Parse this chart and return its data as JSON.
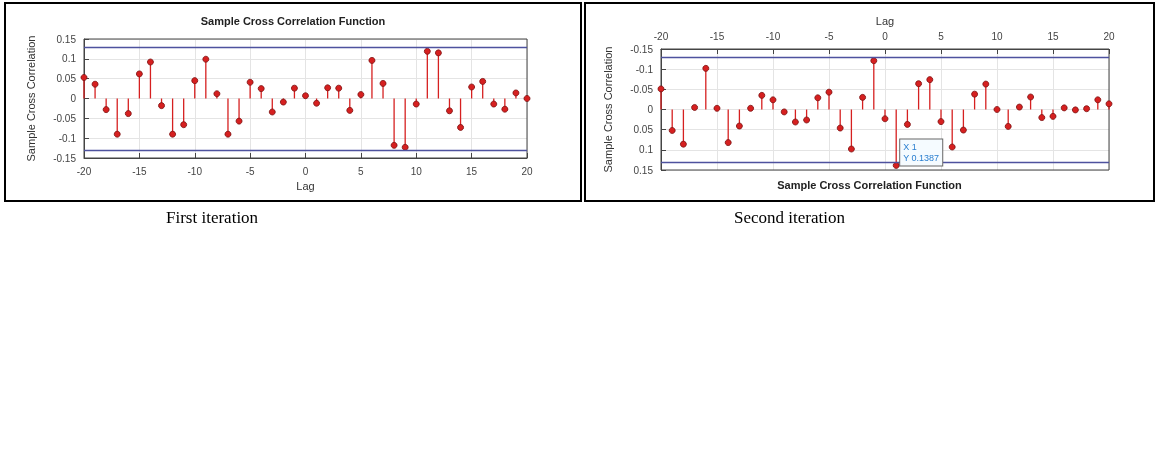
{
  "chart_data": [
    {
      "type": "lollipop",
      "title": "Sample Cross Correlation Function",
      "xlabel": "Lag",
      "ylabel": "Sample Cross Correlation",
      "xlim": [
        -20,
        20
      ],
      "xticks": [
        -20,
        -15,
        -10,
        -5,
        0,
        5,
        10,
        15,
        20
      ],
      "ylim": [
        -0.15,
        0.15
      ],
      "yticks": [
        -0.15,
        -0.1,
        -0.05,
        0,
        0.05,
        0.1,
        0.15
      ],
      "grid": true,
      "marker": "circle",
      "x": [
        -20,
        -19,
        -18,
        -17,
        -16,
        -15,
        -14,
        -13,
        -12,
        -11,
        -10,
        -9,
        -8,
        -7,
        -6,
        -5,
        -4,
        -3,
        -2,
        -1,
        0,
        1,
        2,
        3,
        4,
        5,
        6,
        7,
        8,
        9,
        10,
        11,
        12,
        13,
        14,
        15,
        16,
        17,
        18,
        19,
        20
      ],
      "series": [
        {
          "color": "#d62020",
          "values": [
            0.053,
            0.036,
            -0.028,
            -0.09,
            -0.038,
            0.062,
            0.092,
            -0.018,
            -0.09,
            -0.066,
            0.045,
            0.099,
            0.012,
            -0.09,
            -0.057,
            0.041,
            0.025,
            -0.034,
            -0.009,
            0.026,
            0.007,
            -0.012,
            0.027,
            0.026,
            -0.03,
            0.01,
            0.096,
            0.038,
            -0.118,
            -0.123,
            -0.014,
            0.119,
            0.115,
            -0.031,
            -0.073,
            0.029,
            0.043,
            -0.014,
            -0.027,
            0.014,
            0
          ]
        }
      ],
      "ref_lines": [
        {
          "axis": "y",
          "value": 0.127,
          "color": "#4e529e"
        },
        {
          "axis": "y",
          "value": -0.127,
          "color": "#4e529e"
        }
      ],
      "annotations": [
        "First iteration"
      ]
    },
    {
      "type": "lollipop",
      "title": "Sample Cross Correlation Function",
      "xlabel": "Lag",
      "ylabel": "Sample Cross Correlation",
      "xlim": [
        -20,
        20
      ],
      "xticks": [
        -20,
        -15,
        -10,
        -5,
        0,
        5,
        10,
        15,
        20
      ],
      "ylim": [
        0.15,
        -0.15
      ],
      "yticks": [
        -0.15,
        -0.1,
        -0.05,
        0,
        0.05,
        0.1,
        0.15
      ],
      "grid": true,
      "marker": "circle",
      "x": [
        -20,
        -19,
        -18,
        -17,
        -16,
        -15,
        -14,
        -13,
        -12,
        -11,
        -10,
        -9,
        -8,
        -7,
        -6,
        -5,
        -4,
        -3,
        -2,
        -1,
        0,
        1,
        2,
        3,
        4,
        5,
        6,
        7,
        8,
        9,
        10,
        11,
        12,
        13,
        14,
        15,
        16,
        17,
        18,
        19,
        20
      ],
      "series": [
        {
          "color": "#d62020",
          "values": [
            -0.051,
            0.052,
            0.086,
            -0.005,
            -0.102,
            -0.003,
            0.082,
            0.041,
            -0.003,
            -0.035,
            -0.024,
            0.006,
            0.031,
            0.026,
            -0.029,
            -0.043,
            0.046,
            0.098,
            -0.03,
            -0.121,
            0.023,
            0.1387,
            0.037,
            -0.064,
            -0.074,
            0.03,
            0.093,
            0.051,
            -0.038,
            -0.063,
            0,
            0.042,
            -0.006,
            -0.031,
            0.02,
            0.017,
            -0.004,
            0.001,
            -0.002,
            -0.024,
            -0.014
          ]
        }
      ],
      "ref_lines": [
        {
          "axis": "y",
          "value": -0.127,
          "color": "#4e529e"
        },
        {
          "axis": "y",
          "value": 0.127,
          "color": "#4e529e"
        }
      ],
      "annotations": [
        {
          "text": "X 1\nY 0.1387",
          "x": 1,
          "y": 0.1387
        },
        "Second iteration"
      ]
    }
  ]
}
